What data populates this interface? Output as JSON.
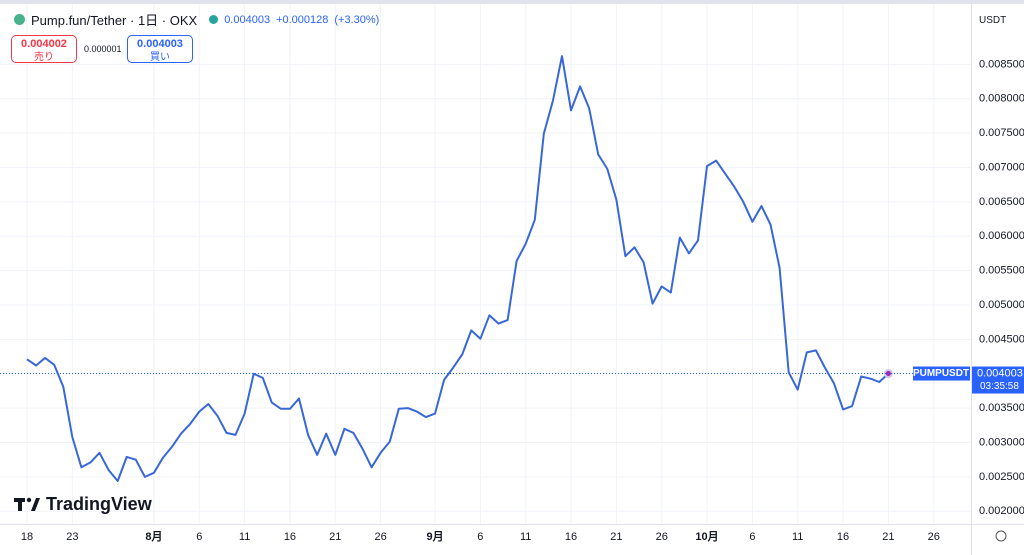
{
  "header": {
    "symbol": "Pump.fun/Tether · 1日 · OKX",
    "change": "+0.000128",
    "change_pct": "(+3.30%)",
    "sell_price": "0.004002",
    "sell_label": "売り",
    "spread": "0.000001",
    "buy_price": "0.004003",
    "buy_label": "買い",
    "currency": "USDT",
    "ticker": "PUMPUSDT",
    "countdown": "03:35:58",
    "branding": "TradingView"
  },
  "chart_data": {
    "type": "line",
    "color": "#3868d8",
    "grid": true,
    "last_price": 0.004003,
    "categories": [
      "18",
      null,
      null,
      null,
      null,
      "23",
      null,
      null,
      null,
      null,
      null,
      null,
      null,
      null,
      "8月",
      null,
      null,
      null,
      null,
      "6",
      null,
      null,
      null,
      null,
      "11",
      null,
      null,
      null,
      null,
      "16",
      null,
      null,
      null,
      null,
      "21",
      null,
      null,
      null,
      null,
      "26",
      null,
      null,
      null,
      null,
      null,
      "9月",
      null,
      null,
      null,
      null,
      "6",
      null,
      null,
      null,
      null,
      "11",
      null,
      null,
      null,
      null,
      "16",
      null,
      null,
      null,
      null,
      "21",
      null,
      null,
      null,
      null,
      "26",
      null,
      null,
      null,
      null,
      "10月",
      null,
      null,
      null,
      null,
      "6",
      null,
      null,
      null,
      null,
      "11",
      null,
      null,
      null,
      null,
      "16",
      null,
      null,
      null,
      null,
      "21",
      null,
      null,
      null,
      null,
      "26",
      null,
      null,
      null,
      null
    ],
    "values": [
      0.00421,
      0.00412,
      0.00423,
      0.00413,
      0.00381,
      0.00308,
      0.00264,
      0.00271,
      0.00285,
      0.0026,
      0.00244,
      0.00279,
      0.00275,
      0.0025,
      0.00256,
      0.00278,
      0.00294,
      0.00313,
      0.00327,
      0.00345,
      0.00356,
      0.00339,
      0.00314,
      0.00311,
      0.00342,
      0.004,
      0.00394,
      0.00358,
      0.00349,
      0.00349,
      0.00364,
      0.00311,
      0.00282,
      0.00313,
      0.00282,
      0.0032,
      0.00314,
      0.00291,
      0.00264,
      0.00285,
      0.00301,
      0.00349,
      0.0035,
      0.00345,
      0.00337,
      0.00342,
      0.00391,
      0.00409,
      0.00428,
      0.00463,
      0.00451,
      0.00485,
      0.00473,
      0.00478,
      0.00564,
      0.00589,
      0.00624,
      0.00749,
      0.00797,
      0.00862,
      0.00783,
      0.00818,
      0.00786,
      0.00719,
      0.00698,
      0.00653,
      0.00571,
      0.00584,
      0.00562,
      0.00502,
      0.00527,
      0.00518,
      0.00598,
      0.00575,
      0.00594,
      0.00702,
      0.0071,
      0.00691,
      0.00672,
      0.0065,
      0.00621,
      0.00644,
      0.00617,
      0.00554,
      0.00402,
      0.00377,
      0.00431,
      0.00434,
      0.00409,
      0.00386,
      0.00348,
      0.00353,
      0.00396,
      0.00393,
      0.00388,
      0.004003,
      null,
      null,
      null,
      null,
      null,
      null,
      null,
      null,
      null
    ],
    "ylim": [
      0.0018,
      0.009
    ],
    "yticks": [
      {
        "value": 0.002,
        "label": "0.002000"
      },
      {
        "value": 0.0025,
        "label": "0.002500"
      },
      {
        "value": 0.003,
        "label": "0.003000"
      },
      {
        "value": 0.0035,
        "label": "0.003500"
      },
      {
        "value": 0.004,
        "label": "0.004000"
      },
      {
        "value": 0.0045,
        "label": "0.004500"
      },
      {
        "value": 0.005,
        "label": "0.005000"
      },
      {
        "value": 0.0055,
        "label": "0.005500"
      },
      {
        "value": 0.006,
        "label": "0.006000"
      },
      {
        "value": 0.0065,
        "label": "0.006500"
      },
      {
        "value": 0.007,
        "label": "0.007000"
      },
      {
        "value": 0.0075,
        "label": "0.007500"
      },
      {
        "value": 0.008,
        "label": "0.008000"
      },
      {
        "value": 0.0085,
        "label": "0.008500"
      }
    ]
  }
}
